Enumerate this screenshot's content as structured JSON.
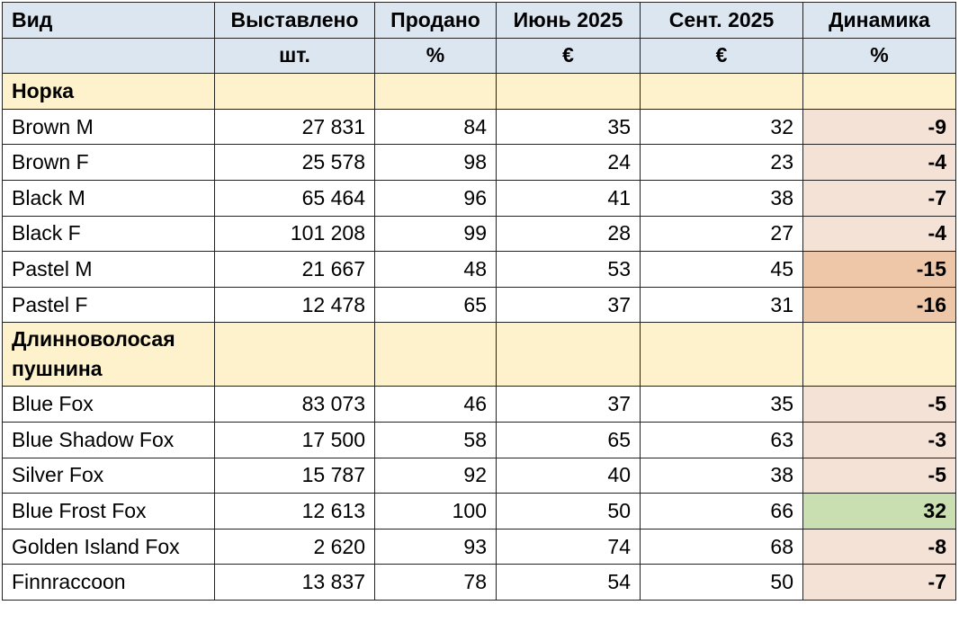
{
  "table": {
    "header": [
      "Вид",
      "Выставлено",
      "Продано",
      "Июнь 2025",
      "Сент. 2025",
      "Динамика"
    ],
    "units": [
      "шт.",
      "%",
      "€",
      "€",
      "%"
    ],
    "sections": [
      {
        "title": "Норка",
        "rows": [
          {
            "cells": [
              "Brown M",
              "27 831",
              "84",
              "35",
              "32",
              "-9"
            ],
            "fill": "#f5e2d6"
          },
          {
            "cells": [
              "Brown F",
              "25 578",
              "98",
              "24",
              "23",
              "-4"
            ],
            "fill": "#f5e2d6"
          },
          {
            "cells": [
              "Black M",
              "65 464",
              "96",
              "41",
              "38",
              "-7"
            ],
            "fill": "#f5e2d6"
          },
          {
            "cells": [
              "Black F",
              "101 208",
              "99",
              "28",
              "27",
              "-4"
            ],
            "fill": "#f5e2d6"
          },
          {
            "cells": [
              "Pastel M",
              "21 667",
              "48",
              "53",
              "45",
              "-15"
            ],
            "fill": "#eec7a9"
          },
          {
            "cells": [
              "Pastel F",
              "12 478",
              "65",
              "37",
              "31",
              "-16"
            ],
            "fill": "#eec7a9"
          }
        ]
      },
      {
        "title": "Длинноволосая пушнина",
        "rows": [
          {
            "cells": [
              "Blue Fox",
              "83 073",
              "46",
              "37",
              "35",
              "-5"
            ],
            "fill": "#f5e2d6"
          },
          {
            "cells": [
              "Blue Shadow Fox",
              "17 500",
              "58",
              "65",
              "63",
              "-3"
            ],
            "fill": "#f5e2d6"
          },
          {
            "cells": [
              "Silver Fox",
              "15 787",
              "92",
              "40",
              "38",
              "-5"
            ],
            "fill": "#f5e2d6"
          },
          {
            "cells": [
              "Blue Frost Fox",
              "12 613",
              "100",
              "50",
              "66",
              "32"
            ],
            "fill": "#c9dfb1"
          },
          {
            "cells": [
              "Golden Island Fox",
              "2 620",
              "93",
              "74",
              "68",
              "-8"
            ],
            "fill": "#f5e2d6"
          },
          {
            "cells": [
              "Finnraccoon",
              "13 837",
              "78",
              "54",
              "50",
              "-7"
            ],
            "fill": "#f5e2d6"
          }
        ]
      }
    ]
  }
}
